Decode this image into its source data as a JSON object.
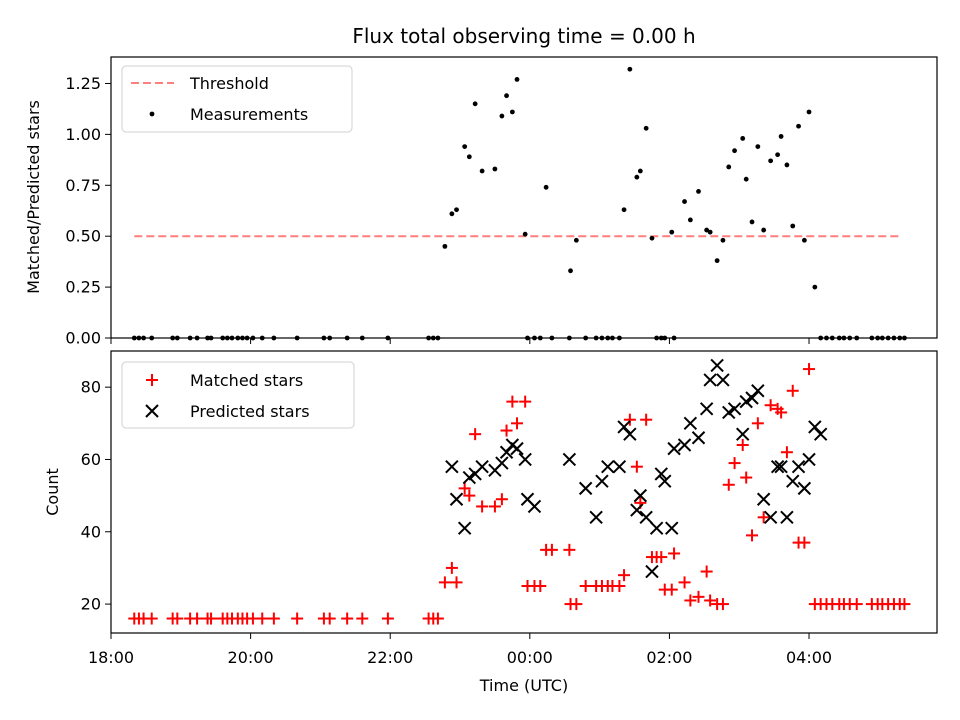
{
  "chart_data": [
    {
      "type": "scatter",
      "title": "Flux total observing time = 0.00 h",
      "xlabel": "",
      "ylabel": "Matched/Predicted stars",
      "xlim": [
        "18:00",
        "05:50"
      ],
      "ylim": [
        0,
        1.38
      ],
      "y_ticks": [
        "0.00",
        "0.25",
        "0.50",
        "0.75",
        "1.00",
        "1.25"
      ],
      "y_tick_values": [
        0,
        0.25,
        0.5,
        0.75,
        1.0,
        1.25
      ],
      "legend_position": "upper-left",
      "series": [
        {
          "name": "Threshold",
          "kind": "dashed-line",
          "color": "#ff7f7f",
          "x": [
            "18:20",
            "05:20"
          ],
          "y": [
            0.5,
            0.5
          ]
        },
        {
          "name": "Measurements",
          "kind": "dots",
          "color": "#000000",
          "x": [
            "18:20",
            "18:24",
            "18:28",
            "18:35",
            "18:53",
            "18:57",
            "19:08",
            "19:14",
            "19:23",
            "19:26",
            "19:36",
            "19:40",
            "19:44",
            "19:49",
            "19:53",
            "19:57",
            "20:02",
            "20:10",
            "20:20",
            "20:40",
            "21:03",
            "21:08",
            "21:23",
            "21:36",
            "21:58",
            "22:33",
            "22:37",
            "22:41",
            "22:47",
            "22:53",
            "22:57",
            "23:04",
            "23:08",
            "23:13",
            "23:19",
            "23:30",
            "23:36",
            "23:40",
            "23:45",
            "23:49",
            "23:56",
            "23:58",
            "00:04",
            "00:09",
            "00:14",
            "00:19",
            "00:34",
            "00:35",
            "00:40",
            "00:48",
            "00:57",
            "01:02",
            "01:07",
            "01:11",
            "01:17",
            "01:21",
            "01:26",
            "01:32",
            "01:35",
            "01:40",
            "01:45",
            "01:49",
            "01:53",
            "01:56",
            "02:02",
            "02:04",
            "02:13",
            "02:18",
            "02:25",
            "02:32",
            "02:35",
            "02:41",
            "02:46",
            "02:51",
            "02:56",
            "03:03",
            "03:06",
            "03:11",
            "03:16",
            "03:21",
            "03:27",
            "03:33",
            "03:36",
            "03:41",
            "03:46",
            "03:51",
            "03:56",
            "04:00",
            "04:05",
            "04:10",
            "04:15",
            "04:20",
            "04:26",
            "04:30",
            "04:35",
            "04:41",
            "04:54",
            "04:59",
            "05:03",
            "05:08",
            "05:13",
            "05:18",
            "05:22"
          ],
          "y": [
            0,
            0,
            0,
            0,
            0,
            0,
            0,
            0,
            0,
            0,
            0,
            0,
            0,
            0,
            0,
            0,
            0,
            0,
            0,
            0,
            0,
            0,
            0,
            0,
            0,
            0,
            0,
            0,
            0.45,
            0.61,
            0.63,
            0.94,
            0.89,
            1.15,
            0.82,
            0.83,
            1.09,
            1.19,
            1.11,
            1.27,
            0.51,
            0,
            0,
            0,
            0.74,
            0,
            0,
            0.33,
            0.48,
            0,
            0,
            0,
            0,
            0,
            0,
            0.63,
            1.32,
            0.79,
            0.82,
            1.03,
            0.49,
            0,
            0,
            0,
            0.52,
            0,
            0.67,
            0.58,
            0.72,
            0.53,
            0.52,
            0.38,
            0.48,
            0.84,
            0.92,
            0.98,
            0.78,
            0.57,
            0.94,
            0.53,
            0.87,
            0.9,
            0.99,
            0.85,
            0.55,
            1.04,
            0.48,
            1.11,
            0.25,
            0,
            0,
            0,
            0,
            0,
            0,
            0,
            0,
            0,
            0,
            0,
            0,
            0,
            0
          ]
        }
      ]
    },
    {
      "type": "scatter",
      "title": "",
      "xlabel": "Time (UTC)",
      "ylabel": "Count",
      "xlim": [
        "18:00",
        "05:50"
      ],
      "ylim": [
        12,
        90
      ],
      "y_ticks": [
        "20",
        "40",
        "60",
        "80"
      ],
      "y_tick_values": [
        20,
        40,
        60,
        80
      ],
      "x_ticks": [
        "18:00",
        "20:00",
        "22:00",
        "00:00",
        "02:00",
        "04:00"
      ],
      "legend_position": "upper-left",
      "series": [
        {
          "name": "Matched stars",
          "kind": "plus",
          "color": "#ff0000",
          "x": [
            "18:20",
            "18:24",
            "18:28",
            "18:35",
            "18:53",
            "18:57",
            "19:08",
            "19:14",
            "19:23",
            "19:26",
            "19:36",
            "19:40",
            "19:44",
            "19:49",
            "19:53",
            "19:57",
            "20:02",
            "20:10",
            "20:20",
            "20:40",
            "21:03",
            "21:08",
            "21:23",
            "21:36",
            "21:58",
            "22:33",
            "22:37",
            "22:41",
            "22:47",
            "22:53",
            "22:57",
            "23:04",
            "23:08",
            "23:13",
            "23:19",
            "23:30",
            "23:36",
            "23:40",
            "23:45",
            "23:49",
            "23:56",
            "23:58",
            "00:04",
            "00:09",
            "00:14",
            "00:19",
            "00:34",
            "00:35",
            "00:40",
            "00:48",
            "00:57",
            "01:02",
            "01:07",
            "01:11",
            "01:17",
            "01:21",
            "01:26",
            "01:32",
            "01:35",
            "01:40",
            "01:45",
            "01:49",
            "01:53",
            "01:56",
            "02:02",
            "02:04",
            "02:13",
            "02:18",
            "02:25",
            "02:32",
            "02:35",
            "02:41",
            "02:46",
            "02:51",
            "02:56",
            "03:03",
            "03:06",
            "03:11",
            "03:16",
            "03:21",
            "03:27",
            "03:33",
            "03:36",
            "03:41",
            "03:46",
            "03:51",
            "03:56",
            "04:00",
            "04:05",
            "04:10",
            "04:15",
            "04:20",
            "04:26",
            "04:30",
            "04:35",
            "04:41",
            "04:54",
            "04:59",
            "05:03",
            "05:08",
            "05:13",
            "05:18",
            "05:22"
          ],
          "y": [
            16,
            16,
            16,
            16,
            16,
            16,
            16,
            16,
            16,
            16,
            16,
            16,
            16,
            16,
            16,
            16,
            16,
            16,
            16,
            16,
            16,
            16,
            16,
            16,
            16,
            16,
            16,
            16,
            26,
            30,
            26,
            52,
            50,
            67,
            47,
            47,
            49,
            68,
            76,
            70,
            76,
            25,
            25,
            25,
            35,
            35,
            35,
            20,
            20,
            25,
            25,
            25,
            25,
            25,
            25,
            28,
            71,
            58,
            48,
            71,
            33,
            33,
            33,
            24,
            24,
            34,
            26,
            21,
            22,
            29,
            21,
            20,
            20,
            53,
            59,
            64,
            55,
            39,
            70,
            44,
            75,
            74,
            73,
            62,
            79,
            37,
            37,
            85,
            20,
            20,
            20,
            20,
            20,
            20,
            20,
            20,
            20,
            20,
            20,
            20,
            20,
            20,
            20
          ]
        },
        {
          "name": "Predicted stars",
          "kind": "x",
          "color": "#000000",
          "x": [
            "22:53",
            "22:57",
            "23:04",
            "23:08",
            "23:13",
            "23:19",
            "23:30",
            "23:36",
            "23:40",
            "23:45",
            "23:49",
            "23:56",
            "23:58",
            "00:04",
            "00:34",
            "00:48",
            "00:57",
            "01:02",
            "01:07",
            "01:17",
            "01:21",
            "01:26",
            "01:32",
            "01:35",
            "01:40",
            "01:45",
            "01:49",
            "01:53",
            "01:56",
            "02:02",
            "02:04",
            "02:13",
            "02:18",
            "02:25",
            "02:32",
            "02:35",
            "02:41",
            "02:46",
            "02:51",
            "02:56",
            "03:03",
            "03:06",
            "03:11",
            "03:16",
            "03:21",
            "03:27",
            "03:33",
            "03:36",
            "03:41",
            "03:46",
            "03:51",
            "03:56",
            "04:00",
            "04:05",
            "04:10"
          ],
          "y": [
            58,
            49,
            41,
            55,
            56,
            58,
            57,
            59,
            62,
            64,
            63,
            60,
            49,
            47,
            60,
            52,
            44,
            54,
            58,
            58,
            69,
            67,
            46,
            50,
            44,
            29,
            41,
            56,
            54,
            41,
            63,
            64,
            70,
            66,
            74,
            82,
            86,
            82,
            73,
            74,
            67,
            76,
            77,
            79,
            49,
            44,
            58,
            58,
            44,
            54,
            58,
            52,
            60,
            69,
            67
          ]
        }
      ]
    }
  ]
}
